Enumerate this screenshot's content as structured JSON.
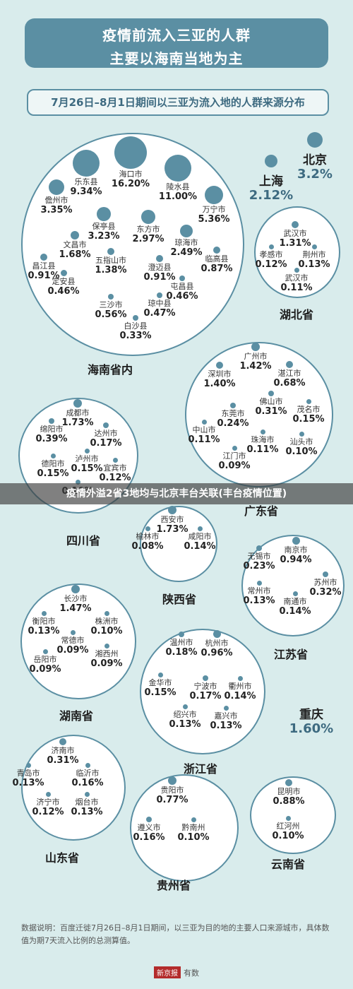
{
  "header": {
    "line1": "疫情前流入三亚的人群",
    "line2": "主要以海南当地为主"
  },
  "subtitle": "7月26日–8月1日期间以三亚为流入地的人群来源分布",
  "banner": "疫情外溢2省3地均与北京丰台关联(丰台疫情位置)",
  "note": "数据说明：百度迁徙7月26日–8月1日期间，以三亚为目的地的主要人口来源城市，具体数值为期7天流入比例的总测算值。",
  "footer": {
    "badge": "新京报",
    "brand": "有数"
  },
  "standalone": [
    {
      "name": "北京",
      "pct": "3.2%"
    },
    {
      "name": "上海",
      "pct": "2.12%"
    },
    {
      "name": "重庆",
      "pct": "1.60%"
    }
  ],
  "provinces": [
    {
      "name": "海南省内",
      "cities": [
        {
          "name": "海口市",
          "pct": "16.20%"
        },
        {
          "name": "乐东县",
          "pct": "9.34%"
        },
        {
          "name": "陵水县",
          "pct": "11.00%"
        },
        {
          "name": "儋州市",
          "pct": "3.35%"
        },
        {
          "name": "万宁市",
          "pct": "5.36%"
        },
        {
          "name": "保亭县",
          "pct": "3.23%"
        },
        {
          "name": "东方市",
          "pct": "2.97%"
        },
        {
          "name": "琼海市",
          "pct": "2.49%"
        },
        {
          "name": "文昌市",
          "pct": "1.68%"
        },
        {
          "name": "临高县",
          "pct": "0.87%"
        },
        {
          "name": "昌江县",
          "pct": "0.91%"
        },
        {
          "name": "五指山市",
          "pct": "1.38%"
        },
        {
          "name": "澄迈县",
          "pct": "0.91%"
        },
        {
          "name": "定安县",
          "pct": "0.46%"
        },
        {
          "name": "屯昌县",
          "pct": "0.46%"
        },
        {
          "name": "琼中县",
          "pct": "0.47%"
        },
        {
          "name": "三沙市",
          "pct": "0.56%"
        },
        {
          "name": "白沙县",
          "pct": "0.33%"
        }
      ]
    },
    {
      "name": "湖北省",
      "cities": [
        {
          "name": "武汉市",
          "pct": "1.31%"
        },
        {
          "name": "孝感市",
          "pct": "0.12%"
        },
        {
          "name": "荆州市",
          "pct": "0.13%"
        },
        {
          "name": "武汉市",
          "pct": "0.11%"
        }
      ]
    },
    {
      "name": "广东省",
      "cities": [
        {
          "name": "广州市",
          "pct": "1.42%"
        },
        {
          "name": "深圳市",
          "pct": "1.40%"
        },
        {
          "name": "湛江市",
          "pct": "0.68%"
        },
        {
          "name": "佛山市",
          "pct": "0.31%"
        },
        {
          "name": "东莞市",
          "pct": "0.24%"
        },
        {
          "name": "茂名市",
          "pct": "0.15%"
        },
        {
          "name": "中山市",
          "pct": "0.11%"
        },
        {
          "name": "珠海市",
          "pct": "0.11%"
        },
        {
          "name": "汕头市",
          "pct": "0.10%"
        },
        {
          "name": "江门市",
          "pct": "0.09%"
        }
      ]
    },
    {
      "name": "四川省",
      "cities": [
        {
          "name": "成都市",
          "pct": "1.73%"
        },
        {
          "name": "绵阳市",
          "pct": "0.39%"
        },
        {
          "name": "达州市",
          "pct": "0.17%"
        },
        {
          "name": "德阳市",
          "pct": "0.15%"
        },
        {
          "name": "泸州市",
          "pct": "0.15%"
        },
        {
          "name": "宜宾市",
          "pct": "0.12%"
        },
        {
          "name": "",
          "pct": "0.10%"
        }
      ]
    },
    {
      "name": "陕西省",
      "cities": [
        {
          "name": "西安市",
          "pct": "1.73%"
        },
        {
          "name": "榆林市",
          "pct": "0.08%"
        },
        {
          "name": "咸阳市",
          "pct": "0.14%"
        }
      ]
    },
    {
      "name": "江苏省",
      "cities": [
        {
          "name": "南京市",
          "pct": "0.94%"
        },
        {
          "name": "无锡市",
          "pct": "0.23%"
        },
        {
          "name": "苏州市",
          "pct": "0.32%"
        },
        {
          "name": "常州市",
          "pct": "0.13%"
        },
        {
          "name": "南通市",
          "pct": "0.14%"
        }
      ]
    },
    {
      "name": "湖南省",
      "cities": [
        {
          "name": "长沙市",
          "pct": "1.47%"
        },
        {
          "name": "衡阳市",
          "pct": "0.13%"
        },
        {
          "name": "株洲市",
          "pct": "0.10%"
        },
        {
          "name": "常德市",
          "pct": "0.09%"
        },
        {
          "name": "岳阳市",
          "pct": "0.09%"
        },
        {
          "name": "湘西州",
          "pct": "0.09%"
        }
      ]
    },
    {
      "name": "浙江省",
      "cities": [
        {
          "name": "温州市",
          "pct": "0.18%"
        },
        {
          "name": "杭州市",
          "pct": "0.96%"
        },
        {
          "name": "金华市",
          "pct": "0.15%"
        },
        {
          "name": "宁波市",
          "pct": "0.17%"
        },
        {
          "name": "衢州市",
          "pct": "0.14%"
        },
        {
          "name": "绍兴市",
          "pct": "0.13%"
        },
        {
          "name": "嘉兴市",
          "pct": "0.13%"
        }
      ]
    },
    {
      "name": "山东省",
      "cities": [
        {
          "name": "济南市",
          "pct": "0.31%"
        },
        {
          "name": "青岛市",
          "pct": "0.13%"
        },
        {
          "name": "临沂市",
          "pct": "0.16%"
        },
        {
          "name": "济宁市",
          "pct": "0.12%"
        },
        {
          "name": "烟台市",
          "pct": "0.13%"
        }
      ]
    },
    {
      "name": "贵州省",
      "cities": [
        {
          "name": "贵阳市",
          "pct": "0.77%"
        },
        {
          "name": "遵义市",
          "pct": "0.16%"
        },
        {
          "name": "黔南州",
          "pct": "0.10%"
        }
      ]
    },
    {
      "name": "云南省",
      "cities": [
        {
          "name": "昆明市",
          "pct": "0.88%"
        },
        {
          "name": "红河州",
          "pct": "0.10%"
        }
      ]
    }
  ]
}
